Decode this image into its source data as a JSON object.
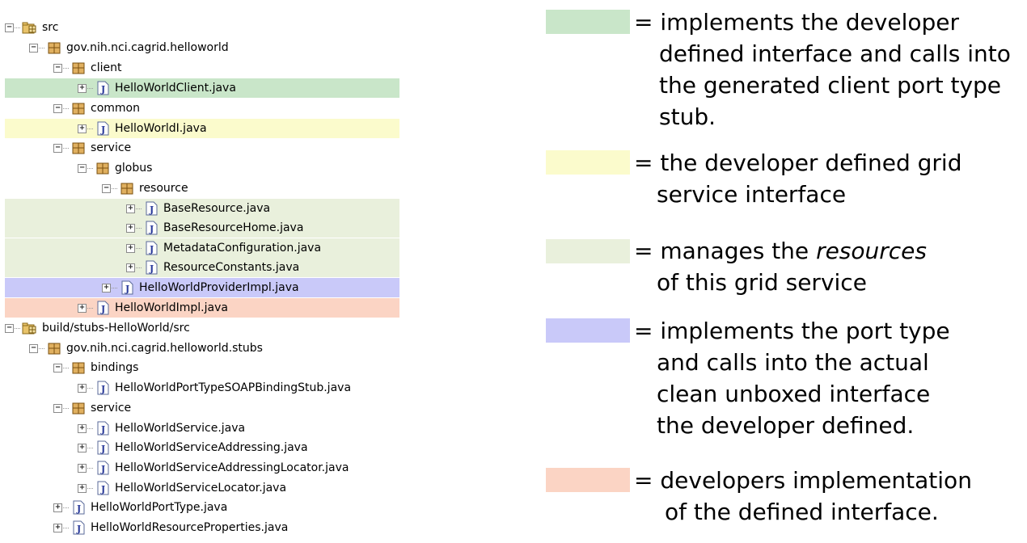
{
  "colors": {
    "green": "#c9e6c9",
    "yellow": "#fbfbcc",
    "pale_green": "#e9f0dc",
    "blue": "#c9c9f9",
    "red": "#fbd4c4"
  },
  "tree": [
    {
      "label": "src",
      "icon": "source-folder-icon",
      "toggle": "−"
    },
    {
      "label": "gov.nih.nci.cagrid.helloworld",
      "icon": "package-icon",
      "toggle": "−"
    },
    {
      "label": "client",
      "icon": "package-icon",
      "toggle": "−"
    },
    {
      "label": "HelloWorldClient.java",
      "icon": "java-file-icon",
      "toggle": "+"
    },
    {
      "label": "common",
      "icon": "package-icon",
      "toggle": "−"
    },
    {
      "label": "HelloWorldI.java",
      "icon": "java-file-icon",
      "toggle": "+"
    },
    {
      "label": "service",
      "icon": "package-icon",
      "toggle": "−"
    },
    {
      "label": "globus",
      "icon": "package-icon",
      "toggle": "−"
    },
    {
      "label": "resource",
      "icon": "package-icon",
      "toggle": "−"
    },
    {
      "label": "BaseResource.java",
      "icon": "java-file-icon",
      "toggle": "+"
    },
    {
      "label": "BaseResourceHome.java",
      "icon": "java-file-icon",
      "toggle": "+"
    },
    {
      "label": "MetadataConfiguration.java",
      "icon": "java-file-icon",
      "toggle": "+"
    },
    {
      "label": "ResourceConstants.java",
      "icon": "java-file-icon",
      "toggle": "+"
    },
    {
      "label": "HelloWorldProviderImpl.java",
      "icon": "java-file-icon",
      "toggle": "+"
    },
    {
      "label": "HelloWorldImpl.java",
      "icon": "java-file-icon",
      "toggle": "+"
    },
    {
      "label": "build/stubs-HelloWorld/src",
      "icon": "source-folder-icon",
      "toggle": "−"
    },
    {
      "label": "gov.nih.nci.cagrid.helloworld.stubs",
      "icon": "package-icon",
      "toggle": "−"
    },
    {
      "label": "bindings",
      "icon": "package-icon",
      "toggle": "−"
    },
    {
      "label": "HelloWorldPortTypeSOAPBindingStub.java",
      "icon": "java-file-icon",
      "toggle": "+"
    },
    {
      "label": "service",
      "icon": "package-icon",
      "toggle": "−"
    },
    {
      "label": "HelloWorldService.java",
      "icon": "java-file-icon",
      "toggle": "+"
    },
    {
      "label": "HelloWorldServiceAddressing.java",
      "icon": "java-file-icon",
      "toggle": "+"
    },
    {
      "label": "HelloWorldServiceAddressingLocator.java",
      "icon": "java-file-icon",
      "toggle": "+"
    },
    {
      "label": "HelloWorldServiceLocator.java",
      "icon": "java-file-icon",
      "toggle": "+"
    },
    {
      "label": "HelloWorldPortType.java",
      "icon": "java-file-icon",
      "toggle": "+"
    },
    {
      "label": "HelloWorldResourceProperties.java",
      "icon": "java-file-icon",
      "toggle": "+"
    }
  ],
  "legend": {
    "eq": "=",
    "green": [
      "implements the developer",
      "defined interface and calls into",
      "the generated client port type",
      "stub."
    ],
    "yellow": [
      "the developer defined grid",
      "service interface"
    ],
    "pale_pre": "manages the ",
    "pale_em": "resources",
    "pale_line2": "of this grid service",
    "blue": [
      "implements the port type",
      "and calls into the actual",
      "clean unboxed interface",
      "the developer defined."
    ],
    "red": [
      "developers implementation",
      "of the defined interface."
    ]
  }
}
